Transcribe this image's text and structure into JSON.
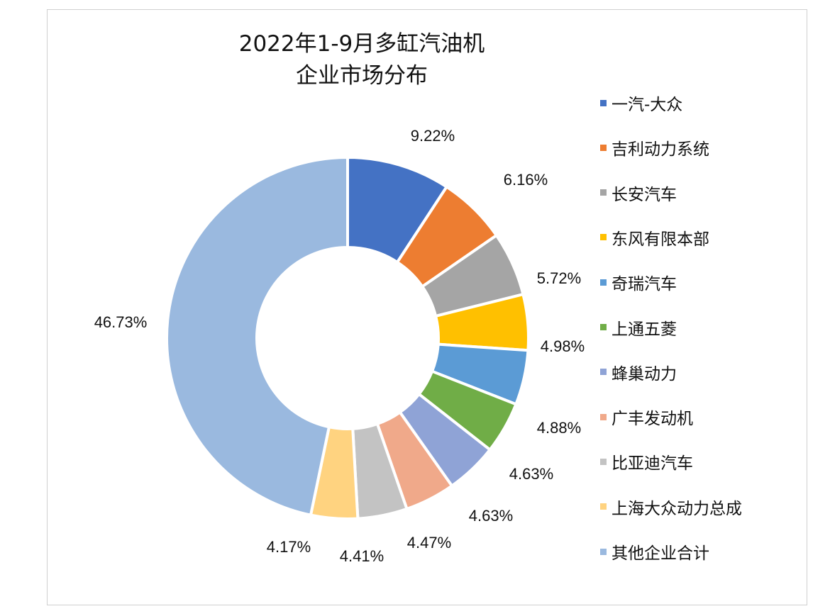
{
  "chart_data": {
    "type": "donut",
    "title_lines": [
      "2022年1-9月多缸汽油机",
      "企业市场分布"
    ],
    "legend_position": "right",
    "series": [
      {
        "name": "一汽-大众",
        "value": 9.22,
        "label": "9.22%",
        "color": "#4472C4"
      },
      {
        "name": "吉利动力系统",
        "value": 6.16,
        "label": "6.16%",
        "color": "#ED7D31"
      },
      {
        "name": "长安汽车",
        "value": 5.72,
        "label": "5.72%",
        "color": "#A5A5A5"
      },
      {
        "name": "东风有限本部",
        "value": 4.98,
        "label": "4.98%",
        "color": "#FFC000"
      },
      {
        "name": "奇瑞汽车",
        "value": 4.88,
        "label": "4.88%",
        "color": "#5B9BD5"
      },
      {
        "name": "上通五菱",
        "value": 4.63,
        "label": "4.63%",
        "color": "#70AD47"
      },
      {
        "name": "蜂巢动力",
        "value": 4.63,
        "label": "4.63%",
        "color": "#8FA3D6"
      },
      {
        "name": "广丰发动机",
        "value": 4.47,
        "label": "4.47%",
        "color": "#F0A98A"
      },
      {
        "name": "比亚迪汽车",
        "value": 4.41,
        "label": "4.41%",
        "color": "#C3C3C3"
      },
      {
        "name": "上海大众动力总成",
        "value": 4.17,
        "label": "4.17%",
        "color": "#FFD380"
      },
      {
        "name": "其他企业合计",
        "value": 46.73,
        "label": "46.73%",
        "color": "#9AB9DF"
      }
    ]
  }
}
